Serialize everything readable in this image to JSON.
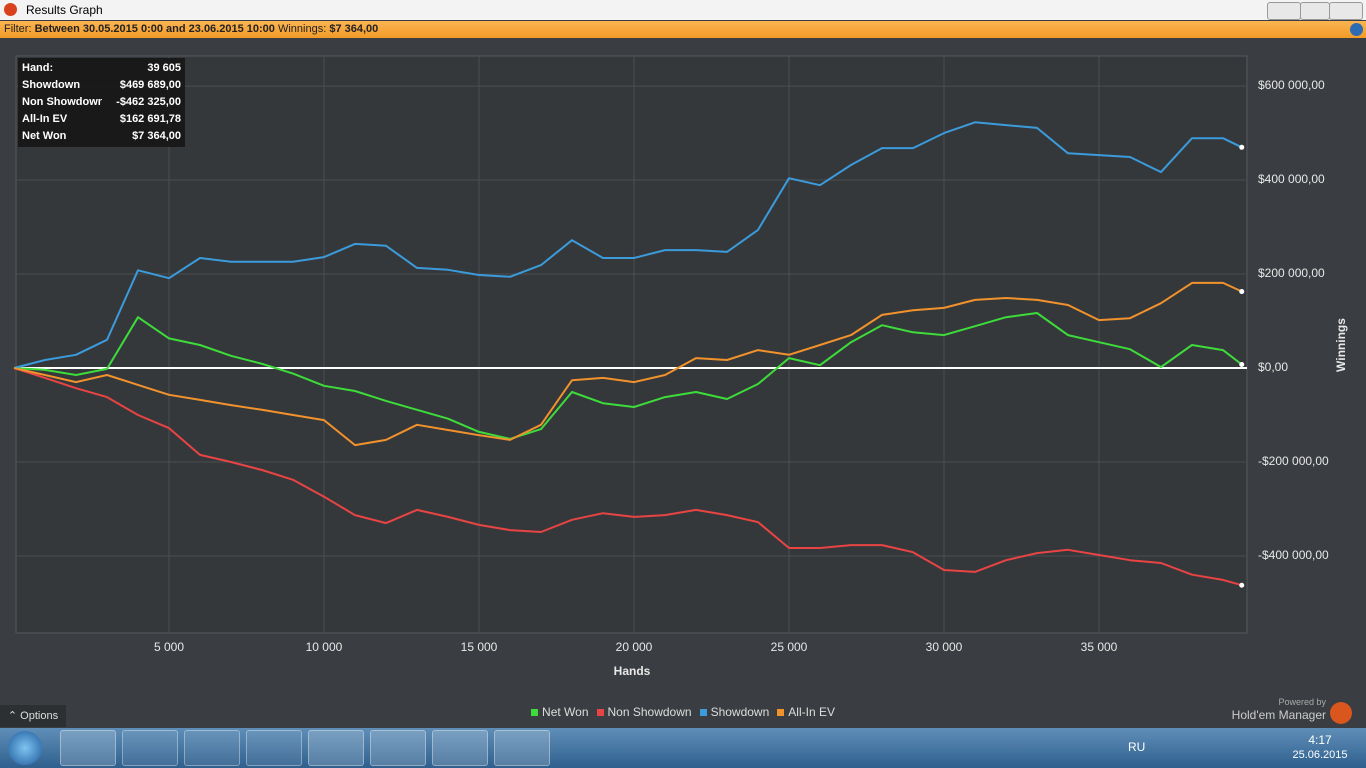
{
  "window": {
    "title": "Results Graph"
  },
  "filter": {
    "label": "Filter:",
    "range": "Between 30.05.2015 0:00 and 23.06.2015 10:00",
    "winnings_label": "Winnings:",
    "winnings": "$7 364,00"
  },
  "stats": [
    [
      "Hand:",
      "39 605"
    ],
    [
      "Showdown",
      "$469 689,00"
    ],
    [
      "Non Showdown",
      "-$462 325,00"
    ],
    [
      "All-In EV",
      "$162 691,78"
    ],
    [
      "Net Won",
      "$7 364,00"
    ]
  ],
  "chart_data": {
    "type": "line",
    "x_label": "Hands",
    "y_label": "Winnings",
    "x": [
      0,
      1000,
      2000,
      3000,
      4000,
      5000,
      6000,
      7000,
      8000,
      9000,
      10000,
      11000,
      12000,
      13000,
      14000,
      15000,
      16000,
      17000,
      18000,
      19000,
      20000,
      21000,
      22000,
      23000,
      24000,
      25000,
      26000,
      27000,
      28000,
      29000,
      30000,
      31000,
      32000,
      33000,
      34000,
      35000,
      36000,
      37000,
      38000,
      39000,
      39605
    ],
    "series": [
      {
        "name": "Net Won",
        "color": "#3ddc3a",
        "values": [
          0,
          -4000,
          -15000,
          -2000,
          108000,
          63000,
          49000,
          26000,
          9000,
          -12000,
          -38000,
          -49000,
          -70000,
          -89000,
          -108000,
          -136000,
          -151000,
          -130000,
          -51000,
          -75000,
          -83000,
          -62000,
          -51000,
          -66000,
          -34000,
          21000,
          6000,
          55000,
          91000,
          76000,
          70000,
          89000,
          108000,
          117000,
          70000,
          55000,
          40000,
          2000,
          49000,
          38000,
          7364
        ]
      },
      {
        "name": "Non Showdown",
        "color": "#e84444",
        "values": [
          0,
          -21000,
          -43000,
          -62000,
          -100000,
          -128000,
          -185000,
          -200000,
          -217000,
          -238000,
          -274000,
          -313000,
          -330000,
          -302000,
          -317000,
          -334000,
          -345000,
          -349000,
          -323000,
          -309000,
          -317000,
          -313000,
          -302000,
          -313000,
          -328000,
          -383000,
          -383000,
          -377000,
          -377000,
          -392000,
          -430000,
          -434000,
          -409000,
          -394000,
          -387000,
          -398000,
          -409000,
          -415000,
          -440000,
          -451000,
          -462325
        ]
      },
      {
        "name": "Showdown",
        "color": "#3b9bdb",
        "values": [
          0,
          17000,
          28000,
          60000,
          208000,
          191000,
          234000,
          226000,
          226000,
          226000,
          236000,
          264000,
          260000,
          213000,
          209000,
          198000,
          194000,
          219000,
          272000,
          234000,
          234000,
          251000,
          251000,
          247000,
          294000,
          404000,
          389000,
          432000,
          468000,
          468000,
          500000,
          523000,
          517000,
          511000,
          457000,
          453000,
          449000,
          417000,
          489000,
          489000,
          469689
        ]
      },
      {
        "name": "All-In EV",
        "color": "#f1922c",
        "values": [
          0,
          -15000,
          -30000,
          -15000,
          -36000,
          -57000,
          -68000,
          -79000,
          -89000,
          -100000,
          -111000,
          -164000,
          -153000,
          -121000,
          -132000,
          -143000,
          -153000,
          -121000,
          -26000,
          -21000,
          -30000,
          -15000,
          21000,
          17000,
          38000,
          28000,
          49000,
          70000,
          113000,
          123000,
          128000,
          145000,
          149000,
          145000,
          134000,
          102000,
          106000,
          138000,
          181000,
          181000,
          162691.78
        ]
      }
    ],
    "xlim": [
      65,
      39774
    ],
    "ylim": [
      -564000,
      664000
    ],
    "xticks": [
      {
        "value": 5000,
        "label": "5 000"
      },
      {
        "value": 10000,
        "label": "10 000"
      },
      {
        "value": 15000,
        "label": "15 000"
      },
      {
        "value": 20000,
        "label": "20 000"
      },
      {
        "value": 25000,
        "label": "25 000"
      },
      {
        "value": 30000,
        "label": "30 000"
      },
      {
        "value": 35000,
        "label": "35 000"
      }
    ],
    "yticks": [
      {
        "value": -400000,
        "label": "-$400 000,00"
      },
      {
        "value": -200000,
        "label": "-$200 000,00"
      },
      {
        "value": 0,
        "label": "$0,00"
      },
      {
        "value": 200000,
        "label": "$200 000,00"
      },
      {
        "value": 400000,
        "label": "$400 000,00"
      },
      {
        "value": 600000,
        "label": "$600 000,00"
      }
    ],
    "grid": true,
    "legend": "bottom"
  },
  "footer": {
    "options": "Options",
    "powered_by": "Powered by",
    "brand": "Hold'em Manager"
  },
  "taskbar": {
    "language": "RU",
    "time": "4:17",
    "date": "25.06.2015"
  }
}
